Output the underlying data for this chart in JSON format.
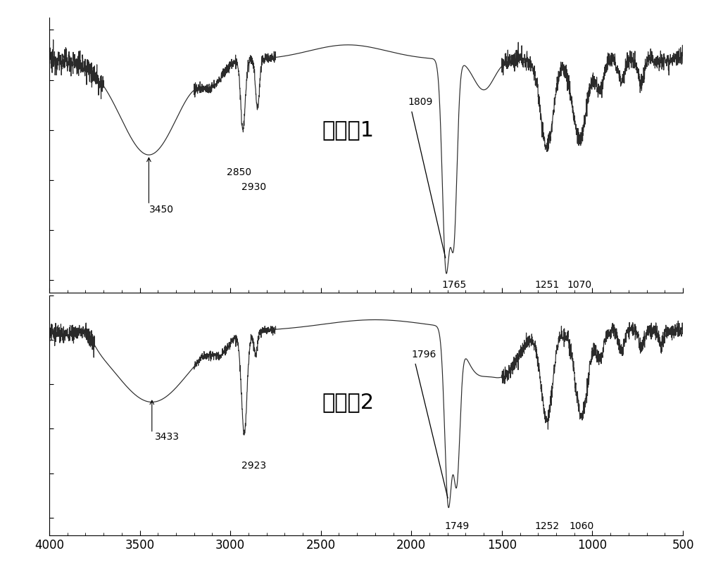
{
  "xmin": 500,
  "xmax": 4000,
  "xticks": [
    4000,
    3500,
    3000,
    2500,
    2000,
    1500,
    1000,
    500
  ],
  "background_color": "#ffffff",
  "spectrum1_label": "实施例1",
  "spectrum2_label": "实施例2",
  "line_color": "#2a2a2a",
  "font_size_peak": 10,
  "font_size_annot": 22
}
